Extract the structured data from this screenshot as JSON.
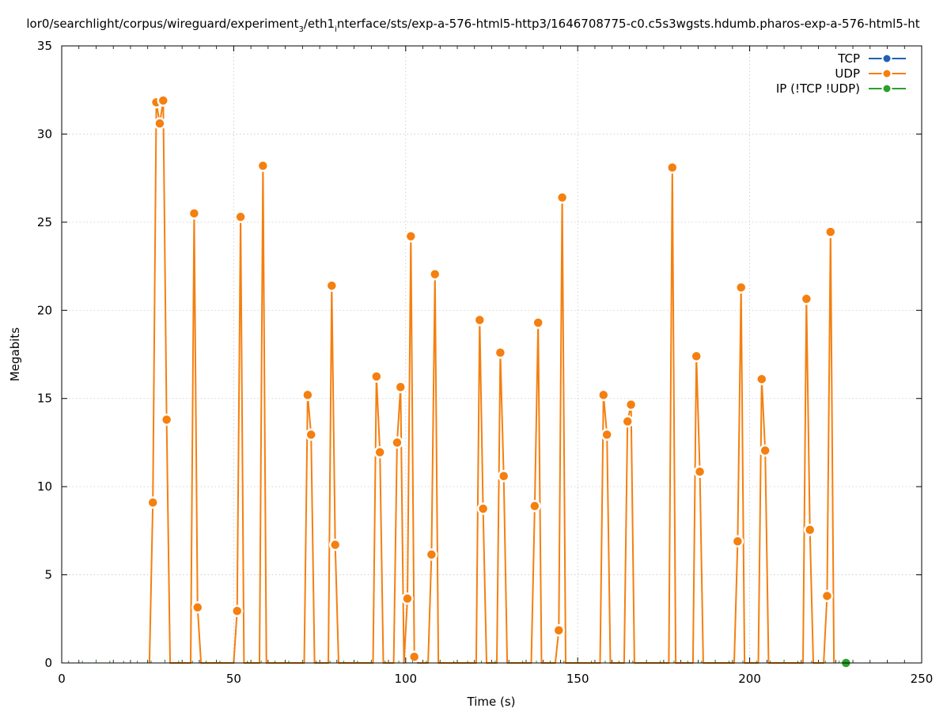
{
  "chart_data": {
    "type": "line",
    "title": "lor0/searchlight/corpus/wireguard/experiment_3/eth1_interface/sts/exp-a-576-html5-http3/1646708775-c0.c5s3wgsts.hdumb.pharos-exp-a-576-html5-ht",
    "title_parts": {
      "p1": "lor0/searchlight/corpus/wireguard/experiment",
      "sub1": "3",
      "p2": "/eth1",
      "sub2": "i",
      "p3": "nterface/sts/exp-a-576-html5-http3/1646708775-c0.c5s3wgsts.hdumb.pharos-exp-a-576-html5-ht"
    },
    "xlabel": "Time (s)",
    "ylabel": "Megabits",
    "xlim": [
      0,
      250
    ],
    "ylim": [
      0,
      35
    ],
    "xticks": [
      "0",
      "50",
      "100",
      "150",
      "200",
      "250"
    ],
    "yticks": [
      "0",
      "5",
      "10",
      "15",
      "20",
      "25",
      "30",
      "35"
    ],
    "grid": true,
    "legend_position": "top-right",
    "series": [
      {
        "name": "TCP",
        "color": "#1f62b0",
        "points": []
      },
      {
        "name": "UDP",
        "color": "#f57f0f",
        "points": [
          [
            25.5,
            0
          ],
          [
            26.5,
            9.1
          ],
          [
            27.5,
            31.8
          ],
          [
            28.5,
            30.6
          ],
          [
            29.5,
            31.9
          ],
          [
            30.5,
            13.8
          ],
          [
            31.5,
            0
          ],
          [
            37.5,
            0
          ],
          [
            38.5,
            25.5
          ],
          [
            39.5,
            3.15
          ],
          [
            40.5,
            0
          ],
          [
            50,
            0
          ],
          [
            51,
            2.95
          ],
          [
            52,
            25.3
          ],
          [
            53,
            0
          ],
          [
            57.5,
            0
          ],
          [
            58.5,
            28.2
          ],
          [
            59.5,
            0
          ],
          [
            70.5,
            0
          ],
          [
            71.5,
            15.2
          ],
          [
            72.5,
            12.95
          ],
          [
            73.5,
            0
          ],
          [
            77.5,
            0
          ],
          [
            78.5,
            21.4
          ],
          [
            79.5,
            6.7
          ],
          [
            80.5,
            0
          ],
          [
            90.5,
            0
          ],
          [
            91.5,
            16.25
          ],
          [
            92.5,
            11.95
          ],
          [
            93.5,
            0
          ],
          [
            96.5,
            0
          ],
          [
            97.5,
            12.5
          ],
          [
            98.5,
            15.65
          ],
          [
            99.5,
            0
          ],
          [
            100.5,
            3.65
          ],
          [
            101.5,
            24.2
          ],
          [
            102.5,
            0.35
          ],
          [
            103.5,
            0
          ],
          [
            106.5,
            0
          ],
          [
            107.5,
            6.15
          ],
          [
            108.5,
            22.05
          ],
          [
            109.5,
            0
          ],
          [
            120.5,
            0
          ],
          [
            121.5,
            19.45
          ],
          [
            122.5,
            8.75
          ],
          [
            123.5,
            0
          ],
          [
            126.5,
            0
          ],
          [
            127.5,
            17.6
          ],
          [
            128.5,
            10.6
          ],
          [
            129.5,
            0
          ],
          [
            136.5,
            0
          ],
          [
            137.5,
            8.9
          ],
          [
            138.5,
            19.3
          ],
          [
            139.5,
            0
          ],
          [
            143.5,
            0
          ],
          [
            144.5,
            1.85
          ],
          [
            145.5,
            26.4
          ],
          [
            146.5,
            0
          ],
          [
            156.5,
            0
          ],
          [
            157.5,
            15.2
          ],
          [
            158.5,
            12.95
          ],
          [
            159.5,
            0
          ],
          [
            163.5,
            0
          ],
          [
            164.5,
            13.7
          ],
          [
            165.5,
            14.65
          ],
          [
            166.5,
            0
          ],
          [
            176.5,
            0
          ],
          [
            177.5,
            28.1
          ],
          [
            178.5,
            0
          ],
          [
            183.5,
            0
          ],
          [
            184.5,
            17.4
          ],
          [
            185.5,
            10.85
          ],
          [
            186.5,
            0
          ],
          [
            195.5,
            0
          ],
          [
            196.5,
            6.9
          ],
          [
            197.5,
            21.3
          ],
          [
            198.5,
            0
          ],
          [
            202.5,
            0
          ],
          [
            203.5,
            16.1
          ],
          [
            204.5,
            12.05
          ],
          [
            205.5,
            0
          ],
          [
            215.5,
            0
          ],
          [
            216.5,
            20.65
          ],
          [
            217.5,
            7.55
          ],
          [
            218.5,
            0
          ],
          [
            221.5,
            0
          ],
          [
            222.5,
            3.8
          ],
          [
            223.5,
            24.45
          ],
          [
            224.5,
            0
          ]
        ]
      },
      {
        "name": "IP (!TCP  !UDP)",
        "color": "#2ca02c",
        "points": [
          [
            228,
            0
          ]
        ]
      }
    ]
  }
}
